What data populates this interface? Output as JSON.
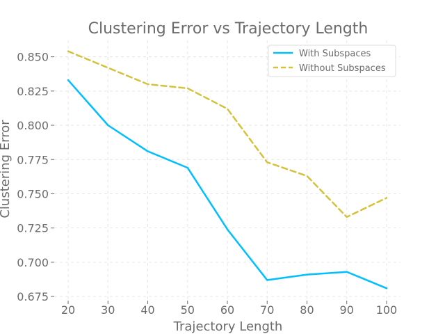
{
  "chart_data": {
    "type": "line",
    "title": "Clustering Error vs Trajectory Length",
    "xlabel": "Trajectory Length",
    "ylabel": "Clustering Error",
    "x": [
      20,
      30,
      40,
      50,
      60,
      70,
      80,
      90,
      100
    ],
    "x_ticks": [
      "20",
      "30",
      "40",
      "50",
      "60",
      "70",
      "80",
      "90",
      "100"
    ],
    "y_ticks": [
      "0.675",
      "0.700",
      "0.725",
      "0.750",
      "0.775",
      "0.800",
      "0.825",
      "0.850"
    ],
    "xlim": [
      16.5,
      103.5
    ],
    "ylim": [
      0.672,
      0.862
    ],
    "grid": true,
    "legend_position": "top-right",
    "series": [
      {
        "name": "With Subspaces",
        "color": "#00bfff",
        "style": "solid",
        "values": [
          0.833,
          0.8,
          0.781,
          0.769,
          0.724,
          0.687,
          0.691,
          0.693,
          0.681
        ]
      },
      {
        "name": "Without Subspaces",
        "color": "#d4c23a",
        "style": "dashed",
        "values": [
          0.854,
          0.842,
          0.83,
          0.827,
          0.812,
          0.773,
          0.763,
          0.733,
          0.747
        ]
      }
    ]
  }
}
